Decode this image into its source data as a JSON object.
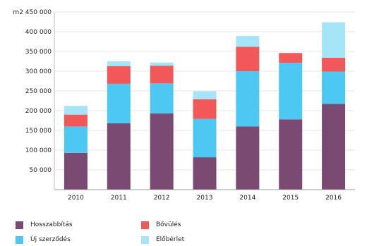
{
  "chart_data": {
    "type": "bar",
    "stacked": true,
    "ylabel_top": "m2 450 000",
    "categories": [
      "2010",
      "2011",
      "2012",
      "2013",
      "2014",
      "2015",
      "2016"
    ],
    "y_ticks": [
      "50 000",
      "100 000",
      "150 000",
      "200 000",
      "250 000",
      "300 000",
      "350 000",
      "400 000"
    ],
    "ylim": [
      0,
      450000
    ],
    "series": [
      {
        "name": "Hosszabbítás",
        "color": "#7b4a72",
        "values": [
          93000,
          168000,
          193000,
          82000,
          160000,
          178000,
          217000
        ]
      },
      {
        "name": "Új szerződés",
        "color": "#4dc8f2",
        "values": [
          67000,
          100000,
          76000,
          97000,
          140000,
          143000,
          82000
        ]
      },
      {
        "name": "Bővülés",
        "color": "#f0585a",
        "values": [
          30000,
          45000,
          45000,
          50000,
          62000,
          25000,
          35000
        ]
      },
      {
        "name": "Előbérlet",
        "color": "#a6e4f8",
        "values": [
          22000,
          12000,
          8000,
          20000,
          27000,
          0,
          90000
        ]
      }
    ],
    "legend_position": "bottom-left",
    "grid": true
  }
}
